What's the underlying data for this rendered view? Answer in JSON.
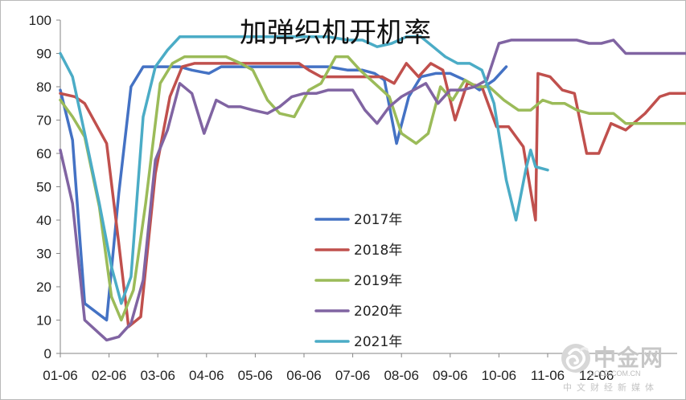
{
  "chart_data": {
    "type": "line",
    "title": "加弹织机开机率",
    "xlabel": "",
    "ylabel": "",
    "ylim": [
      0,
      100
    ],
    "y_ticks": [
      "0",
      "10",
      "20",
      "30",
      "40",
      "50",
      "60",
      "70",
      "80",
      "90",
      "100"
    ],
    "x_ticks": [
      "01-06",
      "02-06",
      "03-06",
      "04-06",
      "05-06",
      "06-06",
      "07-06",
      "08-06",
      "09-06",
      "10-06",
      "11-06",
      "12-06"
    ],
    "grid": false,
    "legend_position": "center",
    "series": [
      {
        "name": "2017年",
        "color": "#4472c4",
        "points": [
          [
            0.0,
            79
          ],
          [
            0.25,
            64
          ],
          [
            0.5,
            15
          ],
          [
            0.95,
            10
          ],
          [
            1.2,
            48
          ],
          [
            1.45,
            80
          ],
          [
            1.7,
            86
          ],
          [
            1.95,
            86
          ],
          [
            2.2,
            86
          ],
          [
            2.45,
            86
          ],
          [
            2.7,
            85
          ],
          [
            3.05,
            84
          ],
          [
            3.3,
            86
          ],
          [
            3.6,
            86
          ],
          [
            4.0,
            86
          ],
          [
            4.5,
            86
          ],
          [
            5.0,
            86
          ],
          [
            5.5,
            86
          ],
          [
            5.9,
            85
          ],
          [
            6.2,
            85
          ],
          [
            6.45,
            84
          ],
          [
            6.65,
            82
          ],
          [
            6.9,
            63
          ],
          [
            7.15,
            77
          ],
          [
            7.4,
            83
          ],
          [
            7.7,
            84
          ],
          [
            8.0,
            84
          ],
          [
            8.3,
            82
          ],
          [
            8.6,
            79
          ],
          [
            8.9,
            82
          ],
          [
            9.15,
            86
          ]
        ]
      },
      {
        "name": "2018年",
        "color": "#c0504d",
        "points": [
          [
            0.0,
            78
          ],
          [
            0.3,
            77
          ],
          [
            0.5,
            75
          ],
          [
            0.95,
            63
          ],
          [
            1.2,
            33
          ],
          [
            1.4,
            8
          ],
          [
            1.65,
            11
          ],
          [
            1.95,
            54
          ],
          [
            2.25,
            77
          ],
          [
            2.5,
            86
          ],
          [
            2.75,
            87
          ],
          [
            3.0,
            87
          ],
          [
            3.3,
            87
          ],
          [
            3.6,
            87
          ],
          [
            4.0,
            87
          ],
          [
            4.5,
            87
          ],
          [
            4.9,
            87
          ],
          [
            5.1,
            85
          ],
          [
            5.35,
            83
          ],
          [
            5.7,
            83
          ],
          [
            6.0,
            83
          ],
          [
            6.3,
            83
          ],
          [
            6.6,
            83
          ],
          [
            6.85,
            81
          ],
          [
            7.1,
            87
          ],
          [
            7.35,
            83
          ],
          [
            7.6,
            87
          ],
          [
            7.85,
            85
          ],
          [
            8.1,
            70
          ],
          [
            8.35,
            81
          ],
          [
            8.65,
            80
          ],
          [
            8.95,
            68
          ],
          [
            9.2,
            68
          ],
          [
            9.5,
            62
          ],
          [
            9.75,
            40
          ],
          [
            9.8,
            84
          ],
          [
            10.05,
            83
          ],
          [
            10.3,
            79
          ],
          [
            10.55,
            78
          ],
          [
            10.8,
            60
          ],
          [
            11.05,
            60
          ],
          [
            11.3,
            69
          ],
          [
            11.6,
            67
          ],
          [
            12.0,
            72
          ],
          [
            12.3,
            77
          ],
          [
            12.5,
            78
          ],
          [
            12.9,
            78
          ]
        ]
      },
      {
        "name": "2019年",
        "color": "#9bbb59",
        "points": [
          [
            0.0,
            76
          ],
          [
            0.25,
            71
          ],
          [
            0.5,
            65
          ],
          [
            0.8,
            44
          ],
          [
            1.05,
            17
          ],
          [
            1.25,
            10
          ],
          [
            1.5,
            19
          ],
          [
            1.75,
            45
          ],
          [
            2.05,
            81
          ],
          [
            2.3,
            87
          ],
          [
            2.55,
            89
          ],
          [
            2.8,
            89
          ],
          [
            3.1,
            89
          ],
          [
            3.4,
            89
          ],
          [
            3.7,
            87
          ],
          [
            3.95,
            85
          ],
          [
            4.25,
            76
          ],
          [
            4.5,
            72
          ],
          [
            4.8,
            71
          ],
          [
            5.1,
            79
          ],
          [
            5.35,
            81
          ],
          [
            5.65,
            89
          ],
          [
            5.9,
            89
          ],
          [
            6.15,
            85
          ],
          [
            6.45,
            81
          ],
          [
            6.75,
            77
          ],
          [
            7.0,
            66
          ],
          [
            7.3,
            63
          ],
          [
            7.55,
            66
          ],
          [
            7.8,
            80
          ],
          [
            8.05,
            76
          ],
          [
            8.3,
            82
          ],
          [
            8.55,
            80
          ],
          [
            8.8,
            80
          ],
          [
            9.1,
            76
          ],
          [
            9.4,
            73
          ],
          [
            9.65,
            73
          ],
          [
            9.9,
            76
          ],
          [
            10.1,
            75
          ],
          [
            10.35,
            75
          ],
          [
            10.6,
            73
          ],
          [
            10.85,
            72
          ],
          [
            11.1,
            72
          ],
          [
            11.35,
            72
          ],
          [
            11.6,
            69
          ],
          [
            11.9,
            69
          ],
          [
            12.2,
            69
          ],
          [
            12.5,
            69
          ],
          [
            12.9,
            69
          ]
        ]
      },
      {
        "name": "2020年",
        "color": "#8064a2",
        "points": [
          [
            0.0,
            61
          ],
          [
            0.25,
            45
          ],
          [
            0.5,
            10
          ],
          [
            0.95,
            4
          ],
          [
            1.2,
            5
          ],
          [
            1.45,
            9
          ],
          [
            1.7,
            22
          ],
          [
            1.95,
            58
          ],
          [
            2.2,
            67
          ],
          [
            2.45,
            81
          ],
          [
            2.7,
            78
          ],
          [
            2.95,
            66
          ],
          [
            3.2,
            76
          ],
          [
            3.45,
            74
          ],
          [
            3.7,
            74
          ],
          [
            3.95,
            73
          ],
          [
            4.25,
            72
          ],
          [
            4.5,
            74
          ],
          [
            4.75,
            77
          ],
          [
            5.0,
            78
          ],
          [
            5.25,
            78
          ],
          [
            5.5,
            79
          ],
          [
            5.75,
            79
          ],
          [
            6.0,
            79
          ],
          [
            6.25,
            73
          ],
          [
            6.5,
            69
          ],
          [
            6.75,
            74
          ],
          [
            7.0,
            77
          ],
          [
            7.25,
            79
          ],
          [
            7.5,
            81
          ],
          [
            7.75,
            75
          ],
          [
            8.0,
            79
          ],
          [
            8.25,
            79
          ],
          [
            8.5,
            80
          ],
          [
            8.75,
            82
          ],
          [
            9.0,
            93
          ],
          [
            9.25,
            94
          ],
          [
            9.5,
            94
          ],
          [
            9.75,
            94
          ],
          [
            10.0,
            94
          ],
          [
            10.3,
            94
          ],
          [
            10.6,
            94
          ],
          [
            10.85,
            93
          ],
          [
            11.1,
            93
          ],
          [
            11.35,
            94
          ],
          [
            11.6,
            90
          ],
          [
            11.9,
            90
          ],
          [
            12.2,
            90
          ],
          [
            12.5,
            90
          ],
          [
            12.9,
            90
          ]
        ]
      },
      {
        "name": "2021年",
        "color": "#4bacc6",
        "points": [
          [
            0.0,
            90
          ],
          [
            0.25,
            83
          ],
          [
            0.5,
            66
          ],
          [
            0.8,
            45
          ],
          [
            1.05,
            26
          ],
          [
            1.25,
            15
          ],
          [
            1.45,
            23
          ],
          [
            1.7,
            71
          ],
          [
            1.95,
            86
          ],
          [
            2.2,
            91
          ],
          [
            2.45,
            95
          ],
          [
            2.7,
            95
          ],
          [
            3.0,
            95
          ],
          [
            3.3,
            95
          ],
          [
            3.6,
            95
          ],
          [
            4.0,
            95
          ],
          [
            4.5,
            95
          ],
          [
            5.0,
            95
          ],
          [
            5.5,
            95
          ],
          [
            5.9,
            94
          ],
          [
            6.2,
            94
          ],
          [
            6.5,
            92
          ],
          [
            6.8,
            93
          ],
          [
            7.1,
            95
          ],
          [
            7.4,
            95
          ],
          [
            7.65,
            92
          ],
          [
            7.9,
            89
          ],
          [
            8.15,
            87
          ],
          [
            8.4,
            87
          ],
          [
            8.65,
            85
          ],
          [
            8.9,
            75
          ],
          [
            9.15,
            52
          ],
          [
            9.35,
            40
          ],
          [
            9.55,
            55
          ],
          [
            9.65,
            61
          ],
          [
            9.75,
            56
          ],
          [
            10.0,
            55
          ]
        ]
      }
    ]
  },
  "watermark": {
    "brand": "中金网",
    "domain": "GOLD.COM.CN",
    "subtitle": "中文财经新媒体"
  }
}
